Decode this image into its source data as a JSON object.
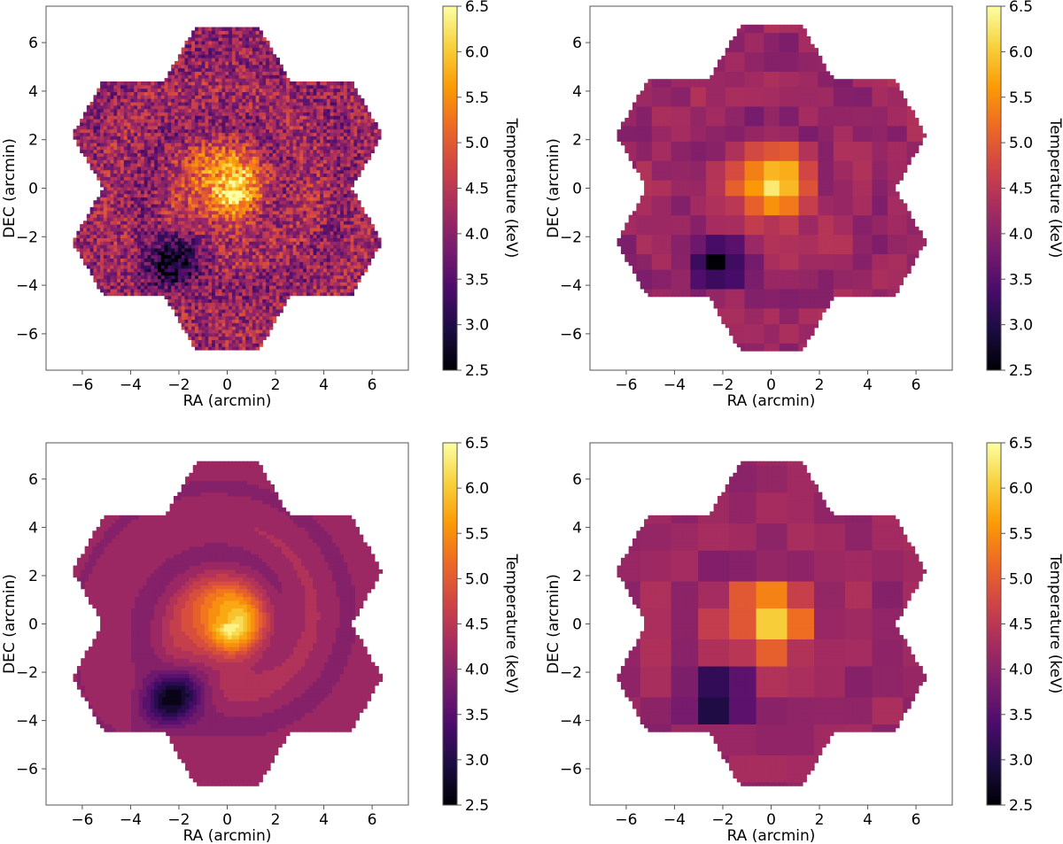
{
  "chart_data": [
    {
      "type": "heatmap",
      "panel": "top-left",
      "map_style": "pixel-noise",
      "xlabel": "RA (arcmin)",
      "ylabel": "DEC (arcmin)",
      "xlim": [
        -7.5,
        7.5
      ],
      "ylim": [
        -7.5,
        7.5
      ],
      "xticks": [
        -6,
        -4,
        -2,
        0,
        2,
        4,
        6
      ],
      "yticks": [
        -6,
        -4,
        -2,
        0,
        2,
        4,
        6
      ],
      "xtick_labels": [
        "−6",
        "−4",
        "−2",
        "0",
        "2",
        "4",
        "6"
      ],
      "ytick_labels": [
        "−6",
        "−4",
        "−2",
        "0",
        "2",
        "4",
        "6"
      ],
      "colorbar": {
        "label": "Temperature (keV)",
        "range": [
          2.5,
          6.5
        ],
        "ticks": [
          2.5,
          3.0,
          3.5,
          4.0,
          4.5,
          5.0,
          5.5,
          6.0,
          6.5
        ],
        "tick_labels": [
          "2.5",
          "3.0",
          "3.5",
          "4.0",
          "4.5",
          "5.0",
          "5.5",
          "6.0",
          "6.5"
        ],
        "colormap": "inferno"
      },
      "grid": false
    },
    {
      "type": "heatmap",
      "panel": "top-right",
      "map_style": "voronoi-bins",
      "xlabel": "RA (arcmin)",
      "ylabel": "DEC (arcmin)",
      "xlim": [
        -7.5,
        7.5
      ],
      "ylim": [
        -7.5,
        7.5
      ],
      "xticks": [
        -6,
        -4,
        -2,
        0,
        2,
        4,
        6
      ],
      "yticks": [
        -6,
        -4,
        -2,
        0,
        2,
        4,
        6
      ],
      "xtick_labels": [
        "−6",
        "−4",
        "−2",
        "0",
        "2",
        "4",
        "6"
      ],
      "ytick_labels": [
        "−6",
        "−4",
        "−2",
        "0",
        "2",
        "4",
        "6"
      ],
      "colorbar": {
        "label": "Temperature (keV)",
        "range": [
          2.5,
          6.5
        ],
        "ticks": [
          2.5,
          3.0,
          3.5,
          4.0,
          4.5,
          5.0,
          5.5,
          6.0,
          6.5
        ],
        "tick_labels": [
          "2.5",
          "3.0",
          "3.5",
          "4.0",
          "4.5",
          "5.0",
          "5.5",
          "6.0",
          "6.5"
        ],
        "colormap": "inferno"
      },
      "grid": false
    },
    {
      "type": "heatmap",
      "panel": "bottom-left",
      "map_style": "contour-bins",
      "xlabel": "RA (arcmin)",
      "ylabel": "DEC (arcmin)",
      "xlim": [
        -7.5,
        7.5
      ],
      "ylim": [
        -7.5,
        7.5
      ],
      "xticks": [
        -6,
        -4,
        -2,
        0,
        2,
        4,
        6
      ],
      "yticks": [
        -6,
        -4,
        -2,
        0,
        2,
        4,
        6
      ],
      "xtick_labels": [
        "−6",
        "−4",
        "−2",
        "0",
        "2",
        "4",
        "6"
      ],
      "ytick_labels": [
        "−6",
        "−4",
        "−2",
        "0",
        "2",
        "4",
        "6"
      ],
      "colorbar": {
        "label": "Temperature (keV)",
        "range": [
          2.5,
          6.5
        ],
        "ticks": [
          2.5,
          3.0,
          3.5,
          4.0,
          4.5,
          5.0,
          5.5,
          6.0,
          6.5
        ],
        "tick_labels": [
          "2.5",
          "3.0",
          "3.5",
          "4.0",
          "4.5",
          "5.0",
          "5.5",
          "6.0",
          "6.5"
        ],
        "colormap": "inferno"
      },
      "grid": false
    },
    {
      "type": "heatmap",
      "panel": "bottom-right",
      "map_style": "large-regions",
      "xlabel": "RA (arcmin)",
      "ylabel": "DEC (arcmin)",
      "xlim": [
        -7.5,
        7.5
      ],
      "ylim": [
        -7.5,
        7.5
      ],
      "xticks": [
        -6,
        -4,
        -2,
        0,
        2,
        4,
        6
      ],
      "yticks": [
        -6,
        -4,
        -2,
        0,
        2,
        4,
        6
      ],
      "xtick_labels": [
        "−6",
        "−4",
        "−2",
        "0",
        "2",
        "4",
        "6"
      ],
      "ytick_labels": [
        "−6",
        "−4",
        "−2",
        "0",
        "2",
        "4",
        "6"
      ],
      "colorbar": {
        "label": "Temperature (keV)",
        "range": [
          2.5,
          6.5
        ],
        "ticks": [
          2.5,
          3.0,
          3.5,
          4.0,
          4.5,
          5.0,
          5.5,
          6.0,
          6.5
        ],
        "tick_labels": [
          "2.5",
          "3.0",
          "3.5",
          "4.0",
          "4.5",
          "5.0",
          "5.5",
          "6.0",
          "6.5"
        ],
        "colormap": "inferno"
      },
      "grid": false
    }
  ],
  "colors": {
    "frame": "#555555",
    "background": "#ffffff",
    "inferno_stops": [
      "#000004",
      "#1b0c41",
      "#4a0c6b",
      "#781c6d",
      "#a52c60",
      "#cf4446",
      "#ed6925",
      "#fb9b06",
      "#f7d13d",
      "#fcffa4"
    ]
  }
}
